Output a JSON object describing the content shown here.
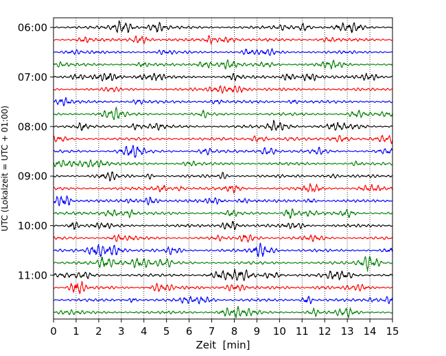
{
  "chart_data": {
    "type": "line",
    "title": "",
    "xlabel": "Zeit  [min]",
    "ylabel": "UTC (Lokalzeit = UTC + 01:00)",
    "xlim": [
      0,
      15
    ],
    "x_ticks": [
      "0",
      "1",
      "2",
      "3",
      "4",
      "5",
      "6",
      "7",
      "8",
      "9",
      "10",
      "11",
      "12",
      "13",
      "14",
      "15"
    ],
    "y_ticks": [
      "06:00",
      "07:00",
      "08:00",
      "09:00",
      "10:00",
      "11:00"
    ],
    "trace_start": "06:00",
    "trace_end": "11:45",
    "trace_interval_minutes": 15,
    "trace_count": 24,
    "trace_colors": [
      "#000000",
      "#ff0000",
      "#0000ff",
      "#008000"
    ],
    "grid": "vertical dotted at each minute",
    "legend": "none"
  }
}
